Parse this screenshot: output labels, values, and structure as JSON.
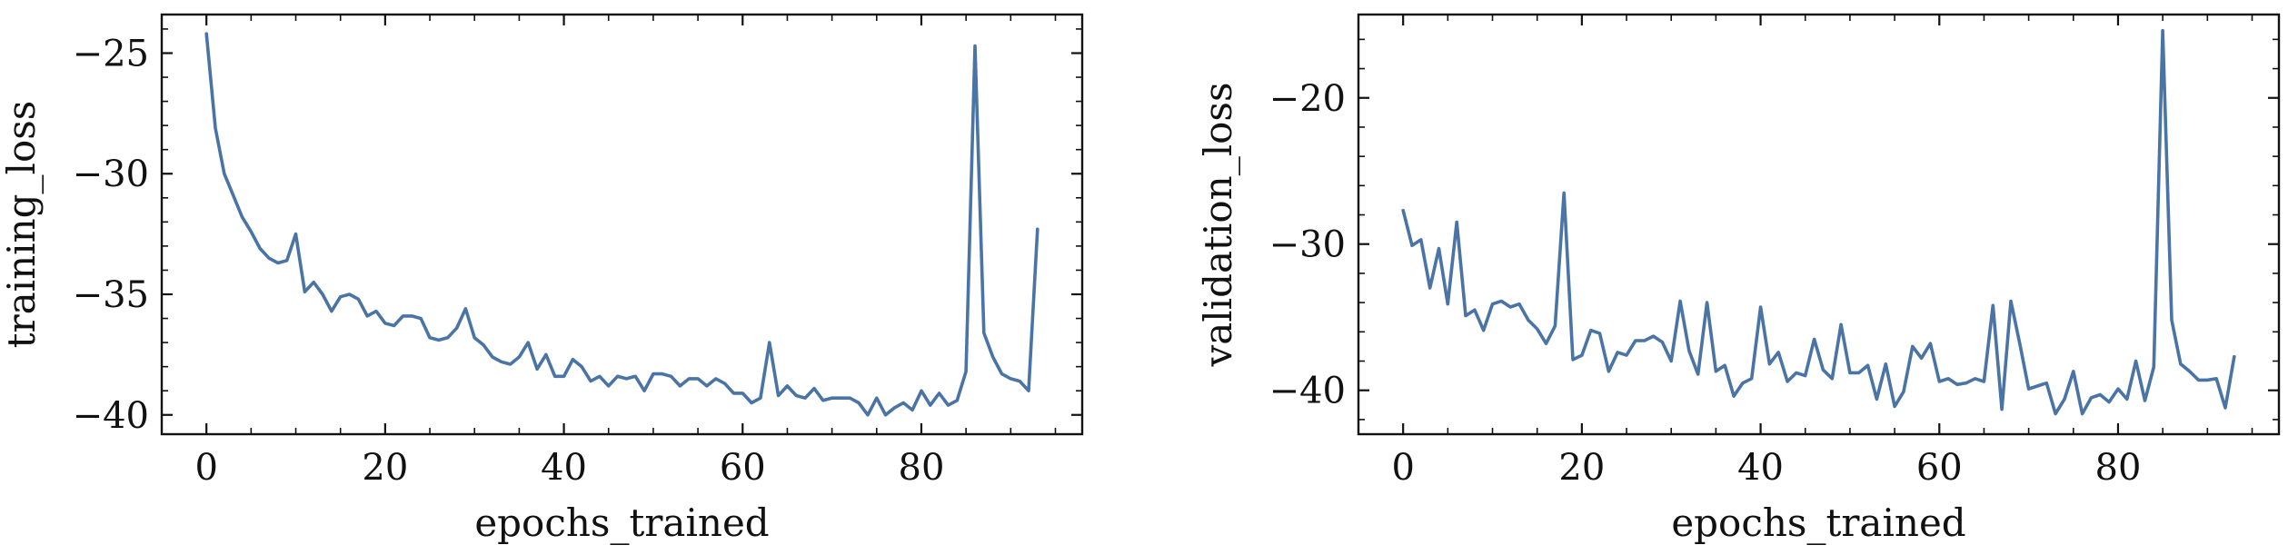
{
  "chart_data": [
    {
      "type": "line",
      "xlabel": "epochs_trained",
      "ylabel": "training_loss",
      "xlim": [
        -5,
        98
      ],
      "ylim": [
        -40.8,
        -23.4
      ],
      "xticks": [
        0,
        20,
        40,
        60,
        80
      ],
      "xtick_labels": [
        "0",
        "20",
        "40",
        "60",
        "80"
      ],
      "yticks": [
        -40,
        -35,
        -30,
        -25
      ],
      "ytick_labels": [
        "−40",
        "−35",
        "−30",
        "−25"
      ],
      "grid": false,
      "color": "#4a74a6",
      "series": [
        {
          "x": [
            0,
            1,
            2,
            3,
            4,
            5,
            6,
            7,
            8,
            9,
            10,
            11,
            12,
            13,
            14,
            15,
            16,
            17,
            18,
            19,
            20,
            21,
            22,
            23,
            24,
            25,
            26,
            27,
            28,
            29,
            30,
            31,
            32,
            33,
            34,
            35,
            36,
            37,
            38,
            39,
            40,
            41,
            42,
            43,
            44,
            45,
            46,
            47,
            48,
            49,
            50,
            51,
            52,
            53,
            54,
            55,
            56,
            57,
            58,
            59,
            60,
            61,
            62,
            63,
            64,
            65,
            66,
            67,
            68,
            69,
            70,
            71,
            72,
            73,
            74,
            75,
            76,
            77,
            78,
            79,
            80,
            81,
            82,
            83,
            84,
            85,
            86,
            87,
            88,
            89,
            90,
            91,
            92,
            93
          ],
          "y": [
            -24.2,
            -28.1,
            -30.0,
            -30.9,
            -31.8,
            -32.4,
            -33.1,
            -33.5,
            -33.7,
            -33.6,
            -32.5,
            -34.9,
            -34.5,
            -35.0,
            -35.7,
            -35.1,
            -35.0,
            -35.2,
            -35.9,
            -35.7,
            -36.2,
            -36.3,
            -35.9,
            -35.9,
            -36.0,
            -36.8,
            -36.9,
            -36.8,
            -36.4,
            -35.6,
            -36.8,
            -37.1,
            -37.6,
            -37.8,
            -37.9,
            -37.6,
            -37.0,
            -38.1,
            -37.5,
            -38.4,
            -38.4,
            -37.7,
            -38.0,
            -38.6,
            -38.4,
            -38.8,
            -38.4,
            -38.5,
            -38.4,
            -39.0,
            -38.3,
            -38.3,
            -38.4,
            -38.8,
            -38.5,
            -38.5,
            -38.8,
            -38.5,
            -38.7,
            -39.1,
            -39.1,
            -39.5,
            -39.3,
            -37.0,
            -39.2,
            -38.8,
            -39.2,
            -39.3,
            -38.9,
            -39.4,
            -39.3,
            -39.3,
            -39.3,
            -39.5,
            -40.0,
            -39.3,
            -40.0,
            -39.7,
            -39.5,
            -39.8,
            -39.0,
            -39.6,
            -39.1,
            -39.6,
            -39.4,
            -38.2,
            -24.7,
            -36.6,
            -37.6,
            -38.3,
            -38.5,
            -38.6,
            -39.0,
            -32.3
          ]
        }
      ]
    },
    {
      "type": "line",
      "xlabel": "epochs_trained",
      "ylabel": "validation_loss",
      "xlim": [
        -5,
        98
      ],
      "ylim": [
        -43.0,
        -14.3
      ],
      "xticks": [
        0,
        20,
        40,
        60,
        80
      ],
      "xtick_labels": [
        "0",
        "20",
        "40",
        "60",
        "80"
      ],
      "yticks": [
        -40,
        -30,
        -20
      ],
      "ytick_labels": [
        "−40",
        "−30",
        "−20"
      ],
      "grid": false,
      "color": "#4a74a6",
      "series": [
        {
          "x": [
            0,
            1,
            2,
            3,
            4,
            5,
            6,
            7,
            8,
            9,
            10,
            11,
            12,
            13,
            14,
            15,
            16,
            17,
            18,
            19,
            20,
            21,
            22,
            23,
            24,
            25,
            26,
            27,
            28,
            29,
            30,
            31,
            32,
            33,
            34,
            35,
            36,
            37,
            38,
            39,
            40,
            41,
            42,
            43,
            44,
            45,
            46,
            47,
            48,
            49,
            50,
            51,
            52,
            53,
            54,
            55,
            56,
            57,
            58,
            59,
            60,
            61,
            62,
            63,
            64,
            65,
            66,
            67,
            68,
            69,
            70,
            71,
            72,
            73,
            74,
            75,
            76,
            77,
            78,
            79,
            80,
            81,
            82,
            83,
            84,
            85,
            86,
            87,
            88,
            89,
            90,
            91,
            92,
            93
          ],
          "y": [
            -27.7,
            -30.1,
            -29.7,
            -33.0,
            -30.3,
            -34.1,
            -28.5,
            -34.9,
            -34.5,
            -35.9,
            -34.1,
            -33.9,
            -34.3,
            -34.1,
            -35.2,
            -35.8,
            -36.8,
            -35.6,
            -26.5,
            -37.9,
            -37.6,
            -35.9,
            -36.1,
            -38.7,
            -37.4,
            -37.6,
            -36.6,
            -36.6,
            -36.3,
            -36.7,
            -38.0,
            -33.9,
            -37.3,
            -38.9,
            -34.0,
            -38.7,
            -38.3,
            -40.4,
            -39.5,
            -39.2,
            -34.3,
            -38.2,
            -37.4,
            -39.4,
            -38.8,
            -39.0,
            -36.5,
            -38.6,
            -39.2,
            -35.5,
            -38.8,
            -38.8,
            -38.3,
            -40.6,
            -38.2,
            -41.1,
            -40.1,
            -37.0,
            -37.8,
            -36.8,
            -39.4,
            -39.2,
            -39.6,
            -39.5,
            -39.2,
            -39.4,
            -34.2,
            -41.3,
            -33.9,
            -36.8,
            -39.9,
            -39.7,
            -39.5,
            -41.6,
            -40.6,
            -38.7,
            -41.6,
            -40.5,
            -40.3,
            -40.8,
            -39.9,
            -40.6,
            -38.0,
            -40.7,
            -38.4,
            -15.4,
            -35.2,
            -38.2,
            -38.7,
            -39.3,
            -39.3,
            -39.2,
            -41.2,
            -37.7
          ]
        }
      ]
    }
  ]
}
